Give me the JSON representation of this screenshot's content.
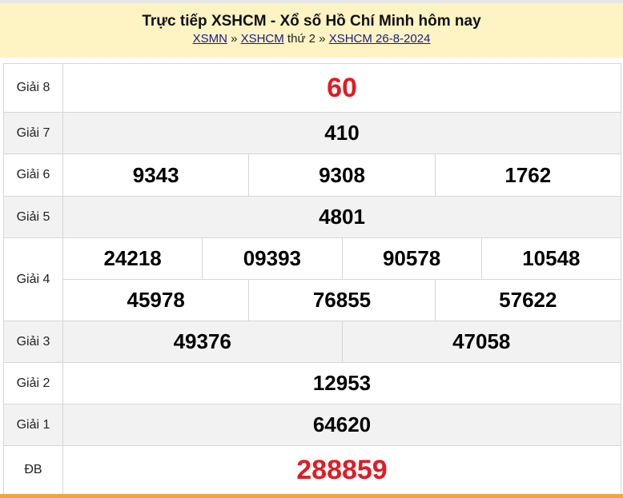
{
  "header": {
    "title": "Trực tiếp XSHCM - Xổ số Hồ Chí Minh hôm nay",
    "crumb": {
      "link1": "XSMN",
      "sep1": " » ",
      "link2": "XSHCM",
      "text": " thứ 2",
      "sep2": " » ",
      "link3": "XSHCM 26-8-2024"
    }
  },
  "colors": {
    "highlight": "#e21b23",
    "header_bg": "#fdf3c3",
    "bottom_bar": "#f7a33b"
  },
  "prizes": {
    "g8": {
      "label": "Giải 8",
      "numbers": [
        "60"
      ]
    },
    "g7": {
      "label": "Giải 7",
      "numbers": [
        "410"
      ]
    },
    "g6": {
      "label": "Giải 6",
      "numbers": [
        "9343",
        "9308",
        "1762"
      ]
    },
    "g5": {
      "label": "Giải 5",
      "numbers": [
        "4801"
      ]
    },
    "g4": {
      "label": "Giải 4",
      "numbers": [
        "24218",
        "09393",
        "90578",
        "10548",
        "45978",
        "76855",
        "57622"
      ]
    },
    "g3": {
      "label": "Giải 3",
      "numbers": [
        "49376",
        "47058"
      ]
    },
    "g2": {
      "label": "Giải 2",
      "numbers": [
        "12953"
      ]
    },
    "g1": {
      "label": "Giải 1",
      "numbers": [
        "64620"
      ]
    },
    "db": {
      "label": "ĐB",
      "numbers": [
        "288859"
      ]
    }
  }
}
